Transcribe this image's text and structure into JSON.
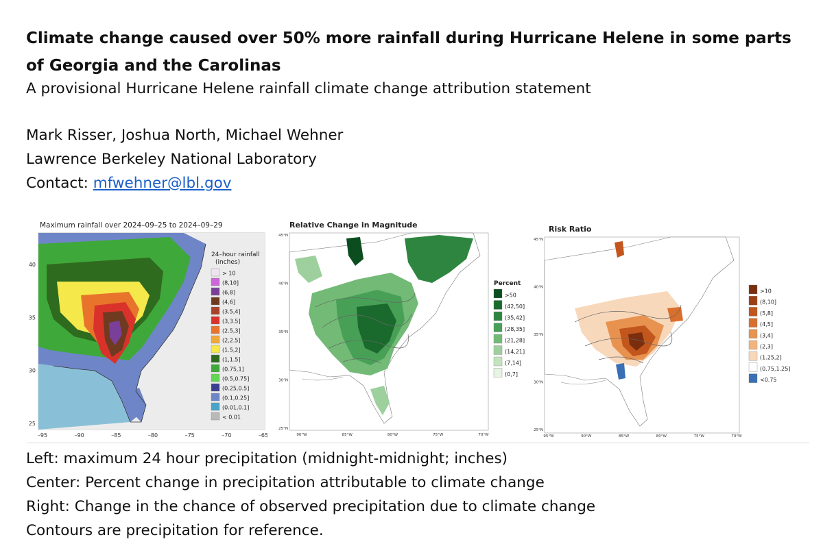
{
  "header": {
    "title": "Climate change caused over 50% more rainfall during Hurricane Helene in some parts of Georgia and the Carolinas",
    "subtitle": "A provisional Hurricane Helene rainfall climate change attribution statement",
    "authors": "Mark Risser, Joshua North, Michael Wehner",
    "institution": "Lawrence Berkeley National Laboratory",
    "contact_label": "Contact:",
    "contact_email": "mfwehner@lbl.gov"
  },
  "panels": {
    "left": {
      "title": "Maximum rainfall over 2024–09–25 to 2024–09–29",
      "legend_title_1": "24–hour rainfall",
      "legend_title_2": "(inches)",
      "legend": [
        {
          "label": "> 10",
          "color": "#ede4f0"
        },
        {
          "label": "(8,10]",
          "color": "#cc66d9"
        },
        {
          "label": "(6,8]",
          "color": "#7a3f99"
        },
        {
          "label": "(4,6]",
          "color": "#6e3b20"
        },
        {
          "label": "(3.5,4]",
          "color": "#a8432a"
        },
        {
          "label": "(3,3.5]",
          "color": "#d9322b"
        },
        {
          "label": "(2.5,3]",
          "color": "#e8742c"
        },
        {
          "label": "(2,2.5]",
          "color": "#f0a83a"
        },
        {
          "label": "(1.5,2]",
          "color": "#f5e84a"
        },
        {
          "label": "(1,1.5]",
          "color": "#2f6b1f"
        },
        {
          "label": "(0.75,1]",
          "color": "#3fa83a"
        },
        {
          "label": "(0.5,0.75]",
          "color": "#63d655"
        },
        {
          "label": "(0.25,0.5]",
          "color": "#3c3f8f"
        },
        {
          "label": "(0.1,0.25]",
          "color": "#6e86c7"
        },
        {
          "label": "(0.01,0.1]",
          "color": "#4aa3c9"
        },
        {
          "label": "< 0.01",
          "color": "#b9b9b9"
        }
      ],
      "y_ticks": [
        "40",
        "35",
        "30",
        "25"
      ],
      "x_ticks": [
        "–95",
        "–90",
        "–85",
        "–80",
        "–75",
        "–70",
        "–65"
      ]
    },
    "center": {
      "title": "Relative Change in Magnitude",
      "legend_title": "Percent",
      "legend": [
        {
          "label": ">50",
          "color": "#0b4d1e"
        },
        {
          "label": "(42,50]",
          "color": "#1b6a2d"
        },
        {
          "label": "(35,42]",
          "color": "#2e8540"
        },
        {
          "label": "(28,35]",
          "color": "#48a057"
        },
        {
          "label": "(21,28]",
          "color": "#72ba76"
        },
        {
          "label": "(14,21]",
          "color": "#9dd09c"
        },
        {
          "label": "(7,14]",
          "color": "#c4e4bf"
        },
        {
          "label": "(0,7]",
          "color": "#e6f4e2"
        }
      ],
      "y_ticks": [
        "45°N",
        "40°N",
        "35°N",
        "30°N",
        "25°N"
      ],
      "x_ticks": [
        "90°W",
        "85°W",
        "80°W",
        "75°W",
        "70°W"
      ]
    },
    "right": {
      "title": "Risk Ratio",
      "legend": [
        {
          "label": ">10",
          "color": "#7a2e0e"
        },
        {
          "label": "(8,10]",
          "color": "#9c3f12"
        },
        {
          "label": "(5,8]",
          "color": "#c2561c"
        },
        {
          "label": "(4,5]",
          "color": "#d86f2c"
        },
        {
          "label": "(3,4]",
          "color": "#e89250"
        },
        {
          "label": "(2,3]",
          "color": "#f2b47e"
        },
        {
          "label": "(1.25,2]",
          "color": "#f8d8bb"
        },
        {
          "label": "(0.75,1.25]",
          "color": "#ffffff"
        },
        {
          "label": "<0.75",
          "color": "#3a6fb5"
        }
      ],
      "y_ticks": [
        "45°N",
        "40°N",
        "35°N",
        "30°N",
        "25°N"
      ],
      "x_ticks": [
        "95°W",
        "90°W",
        "85°W",
        "80°W",
        "75°W",
        "70°W"
      ]
    }
  },
  "captions": {
    "left": "Left: maximum 24 hour precipitation (midnight-midnight; inches)",
    "center": "Center: Percent change in precipitation attributable to climate change",
    "right": "Right: Change in the chance of observed precipitation due to climate change",
    "contours": "Contours are precipitation for reference."
  }
}
